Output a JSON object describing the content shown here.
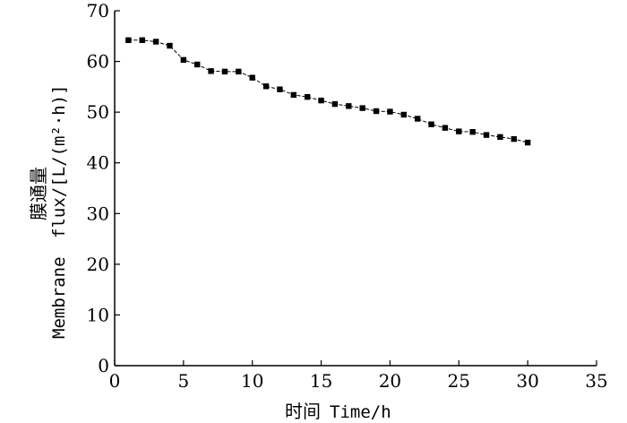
{
  "chart_data": {
    "type": "line",
    "xlabel_cn": "时间",
    "xlabel_en": "Time/h",
    "ylabel_cn": "膜通量",
    "ylabel_en_1": "Membrane",
    "ylabel_en_2": "flux/[L/(m²·h)]",
    "xlim": [
      0,
      35
    ],
    "ylim": [
      0,
      70
    ],
    "xticks": [
      0,
      5,
      10,
      15,
      20,
      25,
      30,
      35
    ],
    "yticks": [
      0,
      10,
      20,
      30,
      40,
      50,
      60,
      70
    ],
    "grid": false,
    "line_style": "dashed",
    "marker": "square",
    "color": "#000000",
    "series": [
      {
        "x": [
          1,
          2,
          3,
          4,
          5,
          6,
          7,
          8,
          9,
          10,
          11,
          12,
          13,
          14,
          15,
          16,
          17,
          18,
          19,
          20,
          21,
          22,
          23,
          24,
          25,
          26,
          27,
          28,
          29,
          30
        ],
        "values": [
          64.2,
          64.2,
          63.9,
          63.1,
          60.3,
          59.4,
          58.1,
          58.0,
          58.0,
          56.8,
          55.1,
          54.5,
          53.4,
          53.0,
          52.3,
          51.6,
          51.2,
          50.8,
          50.2,
          50.1,
          49.5,
          48.7,
          47.6,
          46.9,
          46.2,
          46.1,
          45.5,
          45.1,
          44.7,
          44.0
        ]
      }
    ]
  }
}
